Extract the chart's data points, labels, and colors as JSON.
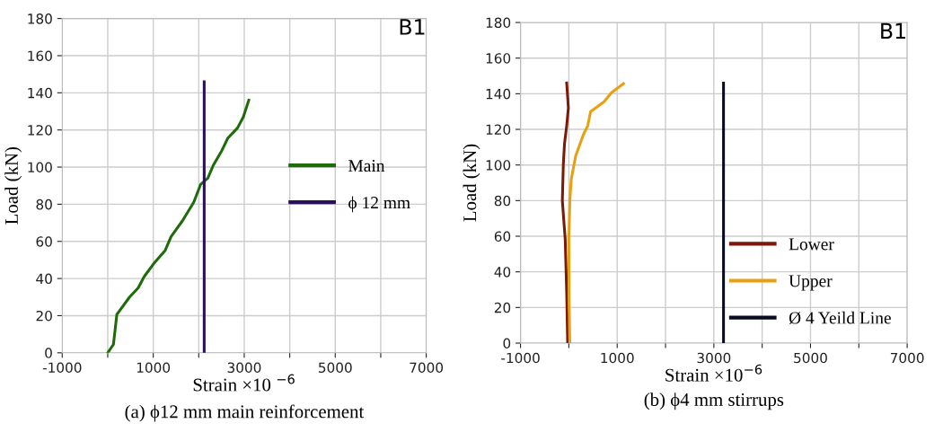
{
  "chart_data": [
    {
      "type": "line",
      "xlabel": "Strain ×10 $^{−6}$",
      "ylabel": "Load (kN)",
      "annotations": [
        "B1",
        "(a) ϕ12 mm main reinforcement"
      ],
      "xlim": [
        -1000,
        7000
      ],
      "xticks": [
        -1000,
        {
          "value": 0,
          "label": null
        },
        1000,
        {
          "value": 2000,
          "label": null
        },
        3000,
        {
          "value": 4000,
          "label": null
        },
        5000,
        {
          "value": 6000,
          "label": null
        },
        7000
      ],
      "ylim": [
        0,
        180
      ],
      "yticks": [
        0,
        20,
        40,
        60,
        80,
        100,
        120,
        140,
        160,
        180
      ],
      "grid": true,
      "legend": "right",
      "marker": "none",
      "line_style": "solid",
      "series": [
        {
          "name": "Main",
          "color": "#1e6b0a",
          "x": [
            0,
            125,
            200,
            480,
            670,
            800,
            1010,
            1260,
            1390,
            1640,
            1890,
            2040,
            2200,
            2320,
            2510,
            2640,
            2850,
            2980,
            3100
          ],
          "values": [
            0,
            4.5,
            20.6,
            30,
            35,
            41,
            48,
            55,
            62.5,
            71,
            81,
            90.6,
            94,
            101,
            109,
            115.6,
            121,
            127,
            136
          ]
        },
        {
          "name": "ϕ 12 mm",
          "color": "#2a0f5c",
          "x": [
            2120,
            2120
          ],
          "values": [
            0,
            146
          ]
        }
      ]
    },
    {
      "type": "line",
      "xlabel": "Strain ×10$^{−6}$",
      "ylabel": "Load (kN)",
      "annotations": [
        "B1",
        "(b) ϕ4 mm stirrups"
      ],
      "xlim": [
        -1000,
        7000
      ],
      "xticks": [
        -1000,
        {
          "value": 0,
          "label": null
        },
        1000,
        {
          "value": 2000,
          "label": null
        },
        3000,
        {
          "value": 4000,
          "label": null
        },
        5000,
        {
          "value": 6000,
          "label": null
        },
        7000
      ],
      "ylim": [
        0,
        180
      ],
      "yticks": [
        0,
        20,
        40,
        60,
        80,
        100,
        120,
        140,
        160,
        180
      ],
      "grid": true,
      "legend": "bottom right",
      "marker": "none",
      "line_style": "solid",
      "series": [
        {
          "name": "Lower",
          "color": "#7b1a0a",
          "x": [
            -25,
            -45,
            -75,
            -135,
            -115,
            -90,
            -45,
            -10,
            -45
          ],
          "values": [
            0,
            28,
            58,
            80,
            100,
            112,
            122,
            132,
            146
          ]
        },
        {
          "name": "Upper",
          "color": "#e8a010",
          "x": [
            20,
            5,
            0,
            20,
            50,
            140,
            300,
            390,
            450,
            730,
            880,
            1130
          ],
          "values": [
            0,
            24,
            58,
            80,
            92,
            105,
            117,
            122,
            130,
            135.5,
            140.6,
            145.6
          ]
        },
        {
          "name": "Ø 4 Yeild Line",
          "color": "#0a0a20",
          "x": [
            3200,
            3200
          ],
          "values": [
            0,
            146
          ]
        }
      ]
    }
  ]
}
